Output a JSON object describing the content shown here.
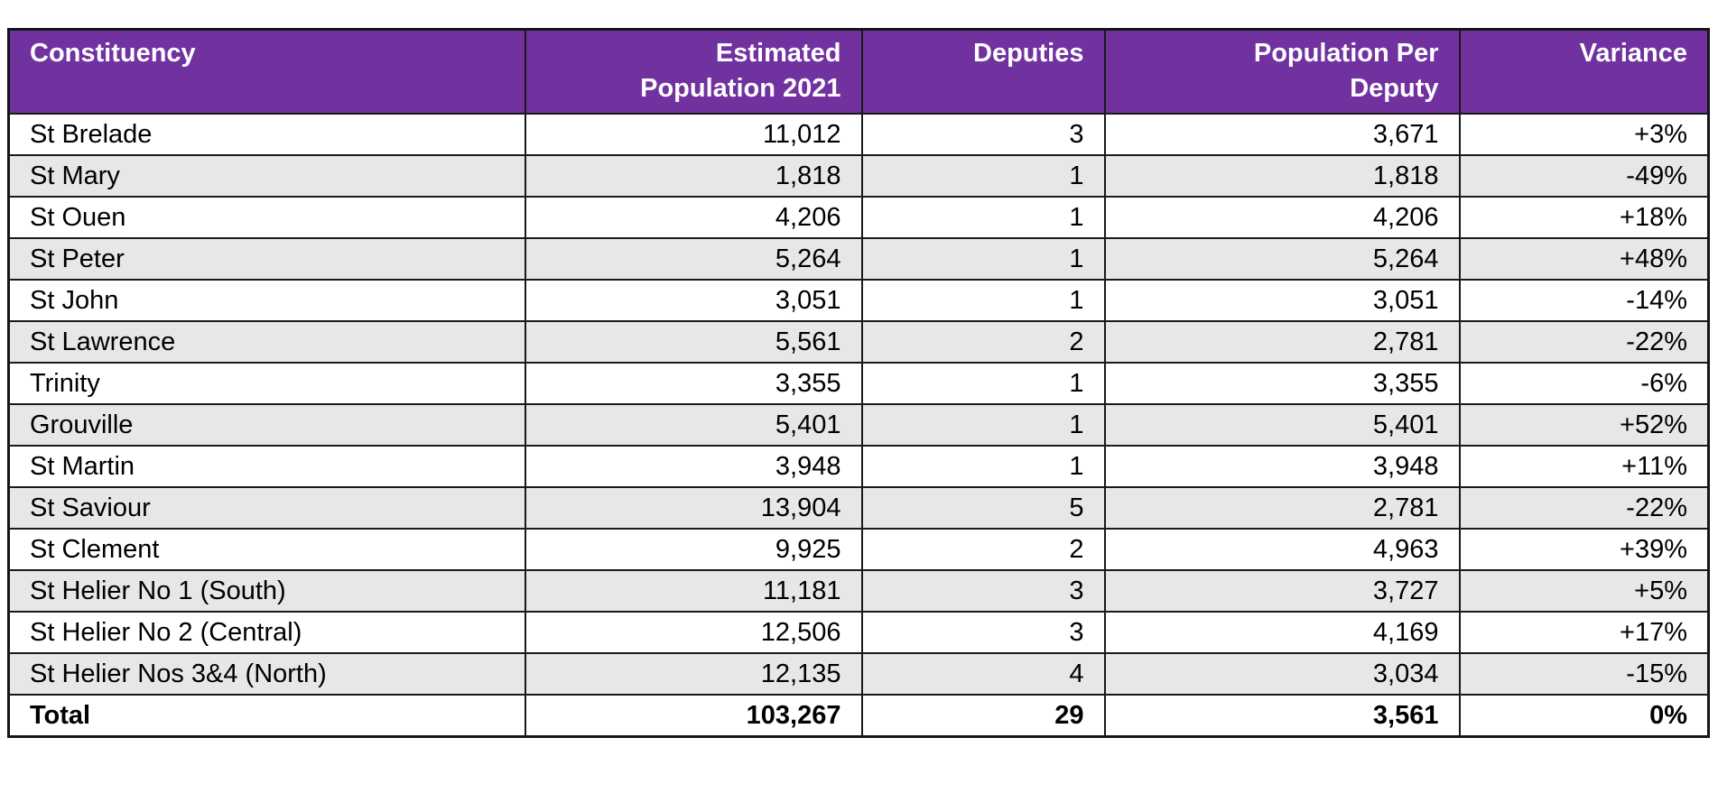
{
  "table": {
    "columns": [
      {
        "label": "Constituency",
        "align": "left"
      },
      {
        "label": "Estimated\nPopulation 2021",
        "align": "right"
      },
      {
        "label": "Deputies",
        "align": "right"
      },
      {
        "label": "Population Per\nDeputy",
        "align": "right"
      },
      {
        "label": "Variance",
        "align": "right"
      }
    ],
    "rows": [
      [
        "St Brelade",
        "11,012",
        "3",
        "3,671",
        "+3%"
      ],
      [
        "St Mary",
        "1,818",
        "1",
        "1,818",
        "-49%"
      ],
      [
        "St Ouen",
        "4,206",
        "1",
        "4,206",
        "+18%"
      ],
      [
        "St Peter",
        "5,264",
        "1",
        "5,264",
        "+48%"
      ],
      [
        "St John",
        "3,051",
        "1",
        "3,051",
        "-14%"
      ],
      [
        "St Lawrence",
        "5,561",
        "2",
        "2,781",
        "-22%"
      ],
      [
        "Trinity",
        "3,355",
        "1",
        "3,355",
        "-6%"
      ],
      [
        "Grouville",
        "5,401",
        "1",
        "5,401",
        "+52%"
      ],
      [
        "St Martin",
        "3,948",
        "1",
        "3,948",
        "+11%"
      ],
      [
        "St Saviour",
        "13,904",
        "5",
        "2,781",
        "-22%"
      ],
      [
        "St Clement",
        "9,925",
        "2",
        "4,963",
        "+39%"
      ],
      [
        "St Helier No 1 (South)",
        "11,181",
        "3",
        "3,727",
        "+5%"
      ],
      [
        "St Helier No 2 (Central)",
        "12,506",
        "3",
        "4,169",
        "+17%"
      ],
      [
        "St Helier Nos 3&4 (North)",
        "12,135",
        "4",
        "3,034",
        "-15%"
      ]
    ],
    "total_row": [
      "Total",
      "103,267",
      "29",
      "3,561",
      "0%"
    ],
    "colors": {
      "header_bg": "#7132A0",
      "header_text": "#FFFFFF",
      "row_alt_bg": "#E7E7E7",
      "row_bg": "#FFFFFF",
      "border": "#1A1A1A",
      "text": "#000000"
    }
  }
}
